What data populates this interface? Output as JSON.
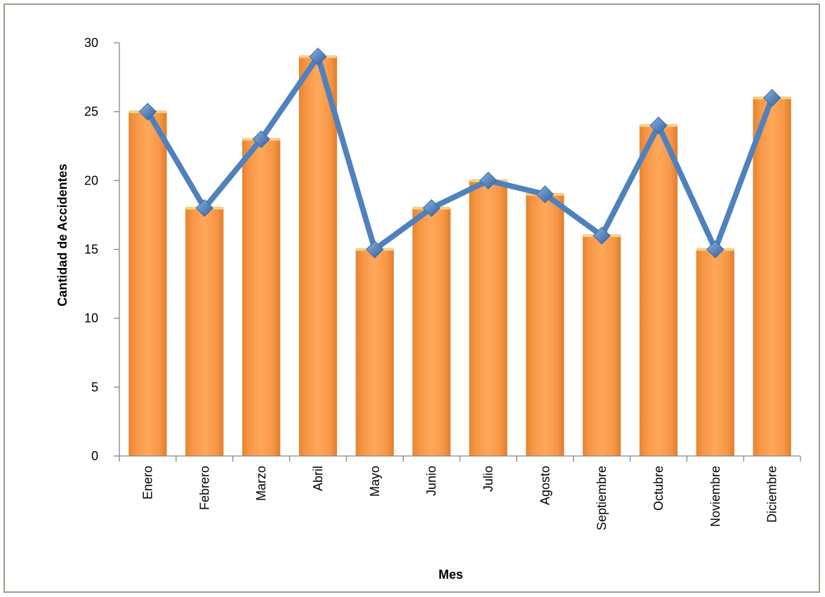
{
  "chart_data": {
    "type": "bar",
    "title": "",
    "xlabel": "Mes",
    "ylabel": "Cantidad de Accidentes",
    "ylim": [
      0,
      30
    ],
    "yticks": [
      0,
      5,
      10,
      15,
      20,
      25,
      30
    ],
    "grid": false,
    "legend": "none",
    "categories": [
      "Enero",
      "Febrero",
      "Marzo",
      "Abril",
      "Mayo",
      "Junio",
      "Julio",
      "Agosto",
      "Septiembre",
      "Octubre",
      "Noviembre",
      "Diciembre"
    ],
    "series": [
      {
        "kind": "bar",
        "values": [
          25,
          18,
          23,
          29,
          15,
          18,
          20,
          19,
          16,
          24,
          15,
          26
        ]
      },
      {
        "kind": "line",
        "values": [
          25,
          18,
          23,
          29,
          15,
          18,
          20,
          19,
          16,
          24,
          15,
          26
        ]
      }
    ],
    "colors": {
      "bar": "#f79646",
      "bar_highlight": "#ffb870",
      "bar_top": "#f2d28a",
      "line": "#4f81bd",
      "marker": "#4f81bd",
      "axis": "#868686"
    }
  }
}
